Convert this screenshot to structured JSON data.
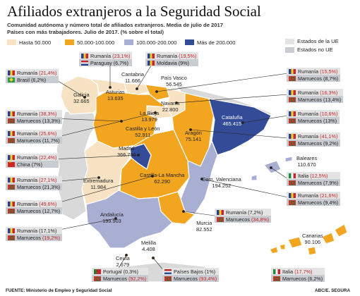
{
  "title": "Afiliados extranjeros a la Seguridad Social",
  "subtitle_line1": "Comunidad autónoma y número total de afiliados extranjeros. Media de julio de 2017",
  "subtitle_line2": "Países con más trabajadores. Julio de 2017. (% sobre el total)",
  "legend": [
    {
      "label": "Hasta 50.000",
      "color": "#f7e3c3"
    },
    {
      "label": "50.000-100.000",
      "color": "#f2a51f"
    },
    {
      "label": "100.000-200.000",
      "color": "#a9aed3"
    },
    {
      "label": "Más de 200.000",
      "color": "#344b97"
    }
  ],
  "legend_ue": {
    "ue": "Estados de la UE",
    "noue": "Estados no UE"
  },
  "colors": {
    "ue_bg": "#e4e4e4",
    "noue_bg": "#c9ccd0",
    "highlight": "#c1272d"
  },
  "regions": {
    "galicia": {
      "name": "Galicia",
      "value": "32.665"
    },
    "asturias": {
      "name": "Asturias",
      "value": "13.635"
    },
    "cantabria": {
      "name": "Cantabria",
      "value": "11.666"
    },
    "pais_vasco": {
      "name": "País Vasco",
      "value": "56.545"
    },
    "navarra": {
      "name": "Navarra",
      "value": "22.800"
    },
    "rioja": {
      "name": "La Rioja",
      "value": "13.979"
    },
    "castilla_leon": {
      "name": "Castilla y León",
      "value": "52.911"
    },
    "aragon": {
      "name": "Aragón",
      "value": "75.141"
    },
    "cataluna": {
      "name": "Cataluña",
      "value": "465.415"
    },
    "madrid": {
      "name": "Madrid",
      "value": "366.796"
    },
    "extremadura": {
      "name": "Extremadura",
      "value": "11.984"
    },
    "castilla_mancha": {
      "name": "Castilla-La Mancha",
      "value": "62.290"
    },
    "valencia": {
      "name": "Com. Valenciana",
      "value": "194.252"
    },
    "baleares": {
      "name": "Baleares",
      "value": "110.670"
    },
    "murcia": {
      "name": "Murcia",
      "value": "82.552"
    },
    "andalucia": {
      "name": "Andalucía",
      "value": "199.903"
    },
    "canarias": {
      "name": "Canarias",
      "value": "90.106"
    },
    "ceuta": {
      "name": "Ceuta",
      "value": "2.679"
    },
    "melilla": {
      "name": "Melilla",
      "value": "4.408"
    }
  },
  "boxes": {
    "galicia": [
      {
        "flag": "ro",
        "country": "Rumanía",
        "pct": "21,4%",
        "ue": true,
        "hl": true
      },
      {
        "flag": "br",
        "country": "Brasil",
        "pct": "6,2%",
        "ue": false,
        "hl": false
      }
    ],
    "asturias": [
      {
        "flag": "ro",
        "country": "Rumanía",
        "pct": "23,1%",
        "ue": true,
        "hl": true
      },
      {
        "flag": "py",
        "country": "Paraguay",
        "pct": "6,7%",
        "ue": false,
        "hl": false
      }
    ],
    "cantabria": [
      {
        "flag": "ro",
        "country": "Rumanía",
        "pct": "19,5%",
        "ue": true,
        "hl": true
      },
      {
        "flag": "md",
        "country": "Moldavia",
        "pct": "9%",
        "ue": false,
        "hl": false
      }
    ],
    "pais_vasco": [
      {
        "flag": "ro",
        "country": "Rumanía",
        "pct": "15,5%",
        "ue": true,
        "hl": true
      },
      {
        "flag": "ma",
        "country": "Marruecos",
        "pct": "8,7%",
        "ue": false,
        "hl": false
      }
    ],
    "navarra": [
      {
        "flag": "ro",
        "country": "Rumanía",
        "pct": "16,3%",
        "ue": true,
        "hl": true
      },
      {
        "flag": "ma",
        "country": "Marruecos",
        "pct": "13,4%",
        "ue": false,
        "hl": false
      }
    ],
    "castilla_leon": [
      {
        "flag": "ro",
        "country": "Rumanía",
        "pct": "38,3%",
        "ue": true,
        "hl": true
      },
      {
        "flag": "ma",
        "country": "Marruecos",
        "pct": "13,3%",
        "ue": false,
        "hl": false
      }
    ],
    "cataluna": [
      {
        "flag": "ro",
        "country": "Rumanía",
        "pct": "10,6%",
        "ue": true,
        "hl": true
      },
      {
        "flag": "ma",
        "country": "Marruecos",
        "pct": "13%",
        "ue": false,
        "hl": false
      }
    ],
    "rioja": [
      {
        "flag": "ro",
        "country": "Rumanía",
        "pct": "25,6%",
        "ue": true,
        "hl": true
      },
      {
        "flag": "ma",
        "country": "Marruecos",
        "pct": "11,7%",
        "ue": false,
        "hl": false
      }
    ],
    "aragon": [
      {
        "flag": "ro",
        "country": "Rumanía",
        "pct": "41,1%",
        "ue": true,
        "hl": true
      },
      {
        "flag": "ma",
        "country": "Marruecos",
        "pct": "9,2%",
        "ue": false,
        "hl": false
      }
    ],
    "madrid": [
      {
        "flag": "ro",
        "country": "Rumanía",
        "pct": "22,4%",
        "ue": true,
        "hl": true
      },
      {
        "flag": "cn",
        "country": "China",
        "pct": "7%",
        "ue": false,
        "hl": false
      }
    ],
    "baleares": [
      {
        "flag": "it",
        "country": "Italia",
        "pct": "12,5%",
        "ue": true,
        "hl": true
      },
      {
        "flag": "ma",
        "country": "Marruecos",
        "pct": "7,9%",
        "ue": false,
        "hl": false
      }
    ],
    "extremadura": [
      {
        "flag": "ro",
        "country": "Rumanía",
        "pct": "27,1%",
        "ue": true,
        "hl": true
      },
      {
        "flag": "ma",
        "country": "Marruecos",
        "pct": "21,3%",
        "ue": false,
        "hl": false
      }
    ],
    "valencia": [
      {
        "flag": "ro",
        "country": "Rumanía",
        "pct": "21,6%",
        "ue": true,
        "hl": true
      },
      {
        "flag": "ma",
        "country": "Marruecos",
        "pct": "9,4%",
        "ue": false,
        "hl": false
      }
    ],
    "castilla_mancha": [
      {
        "flag": "ro",
        "country": "Rumanía",
        "pct": "49,6%",
        "ue": true,
        "hl": true
      },
      {
        "flag": "ma",
        "country": "Marruecos",
        "pct": "12,7%",
        "ue": false,
        "hl": false
      }
    ],
    "murcia": [
      {
        "flag": "ro",
        "country": "Rumanía",
        "pct": "7,2%",
        "ue": true,
        "hl": false
      },
      {
        "flag": "ma",
        "country": "Marruecos",
        "pct": "34,8%",
        "ue": false,
        "hl": true
      }
    ],
    "andalucia": [
      {
        "flag": "ro",
        "country": "Rumanía",
        "pct": "17,1%",
        "ue": true,
        "hl": false
      },
      {
        "flag": "ma",
        "country": "Marruecos",
        "pct": "19,2%",
        "ue": false,
        "hl": true
      }
    ],
    "ceuta": [
      {
        "flag": "pt",
        "country": "Portugal",
        "pct": "0,3%",
        "ue": true,
        "hl": false
      },
      {
        "flag": "ma",
        "country": "Marruecos",
        "pct": "92,2%",
        "ue": false,
        "hl": true
      }
    ],
    "melilla": [
      {
        "flag": "nl",
        "country": "Países Bajos",
        "pct": "1%",
        "ue": true,
        "hl": false
      },
      {
        "flag": "ma",
        "country": "Marruecos",
        "pct": "93,4%",
        "ue": false,
        "hl": true
      }
    ],
    "canarias": [
      {
        "flag": "it",
        "country": "Italia",
        "pct": "17,7%",
        "ue": true,
        "hl": true
      },
      {
        "flag": "ma",
        "country": "Marruecos",
        "pct": "6,2%",
        "ue": false,
        "hl": false
      }
    ]
  },
  "footer": {
    "source": "FUENTE: Ministerio de Empleo y Seguridad Social",
    "credit": "ABC/E. SEGURA"
  }
}
